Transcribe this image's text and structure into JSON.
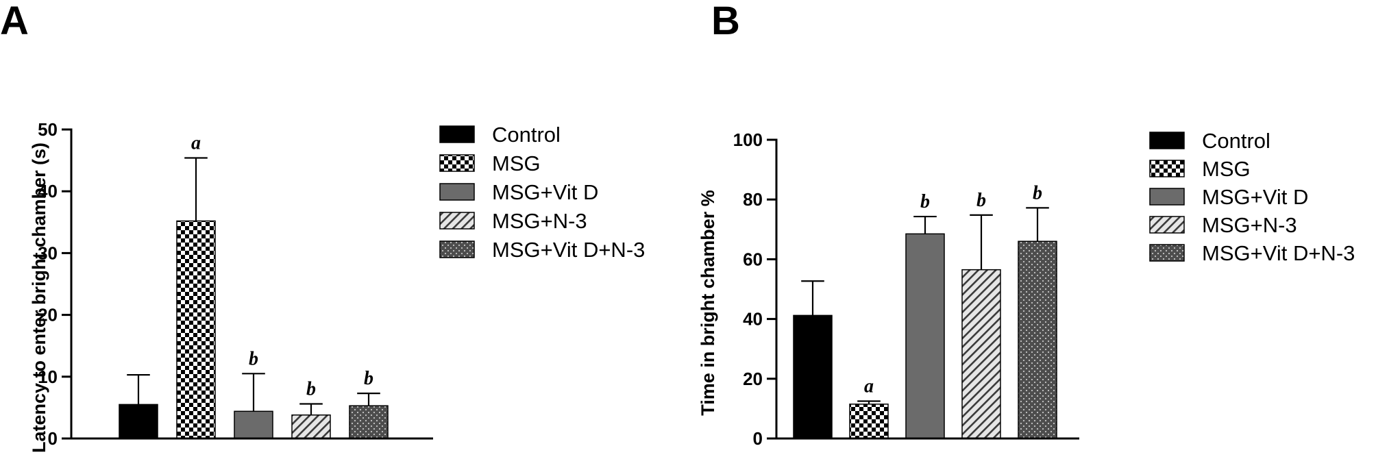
{
  "chart_data": [
    {
      "type": "bar",
      "panel": "A",
      "ylabel": "Latency to enter bright chamber (s)",
      "ylim": [
        0,
        50
      ],
      "yticks": [
        0,
        10,
        20,
        30,
        40,
        50
      ],
      "categories": [
        "Control",
        "MSG",
        "MSG+Vit D",
        "MSG+N-3",
        "MSG+Vit D+N-3"
      ],
      "values": [
        5.5,
        35.2,
        4.4,
        3.8,
        5.3
      ],
      "errors": [
        4.8,
        10.2,
        6.1,
        1.8,
        2.0
      ],
      "significance": [
        "",
        "a",
        "b",
        "b",
        "b"
      ],
      "grid": false,
      "legend_position": "right",
      "legend": [
        "Control",
        "MSG",
        "MSG+Vit D",
        "MSG+N-3",
        "MSG+Vit D+N-3"
      ]
    },
    {
      "type": "bar",
      "panel": "B",
      "ylabel": "Time in bright chamber %",
      "ylim": [
        0,
        100
      ],
      "yticks": [
        0,
        20,
        40,
        60,
        80,
        100
      ],
      "categories": [
        "Control",
        "MSG",
        "MSG+Vit D",
        "MSG+N-3",
        "MSG+Vit D+N-3"
      ],
      "values": [
        41.2,
        11.5,
        68.5,
        56.5,
        66.0
      ],
      "errors": [
        11.5,
        1.0,
        5.8,
        18.3,
        11.2
      ],
      "significance": [
        "",
        "a",
        "b",
        "b",
        "b"
      ],
      "grid": false,
      "legend_position": "right",
      "legend": [
        "Control",
        "MSG",
        "MSG+Vit D",
        "MSG+N-3",
        "MSG+Vit D+N-3"
      ]
    }
  ],
  "series_styles": [
    {
      "name_index": 0,
      "pattern": "solid-black",
      "color": "#000000"
    },
    {
      "name_index": 1,
      "pattern": "checkerboard",
      "color": "#000000"
    },
    {
      "name_index": 2,
      "pattern": "solid-gray",
      "color": "#6b6b6b"
    },
    {
      "name_index": 3,
      "pattern": "diagonal-hatch",
      "color": "#555555"
    },
    {
      "name_index": 4,
      "pattern": "dotted-dark",
      "color": "#4a4a4a"
    }
  ]
}
